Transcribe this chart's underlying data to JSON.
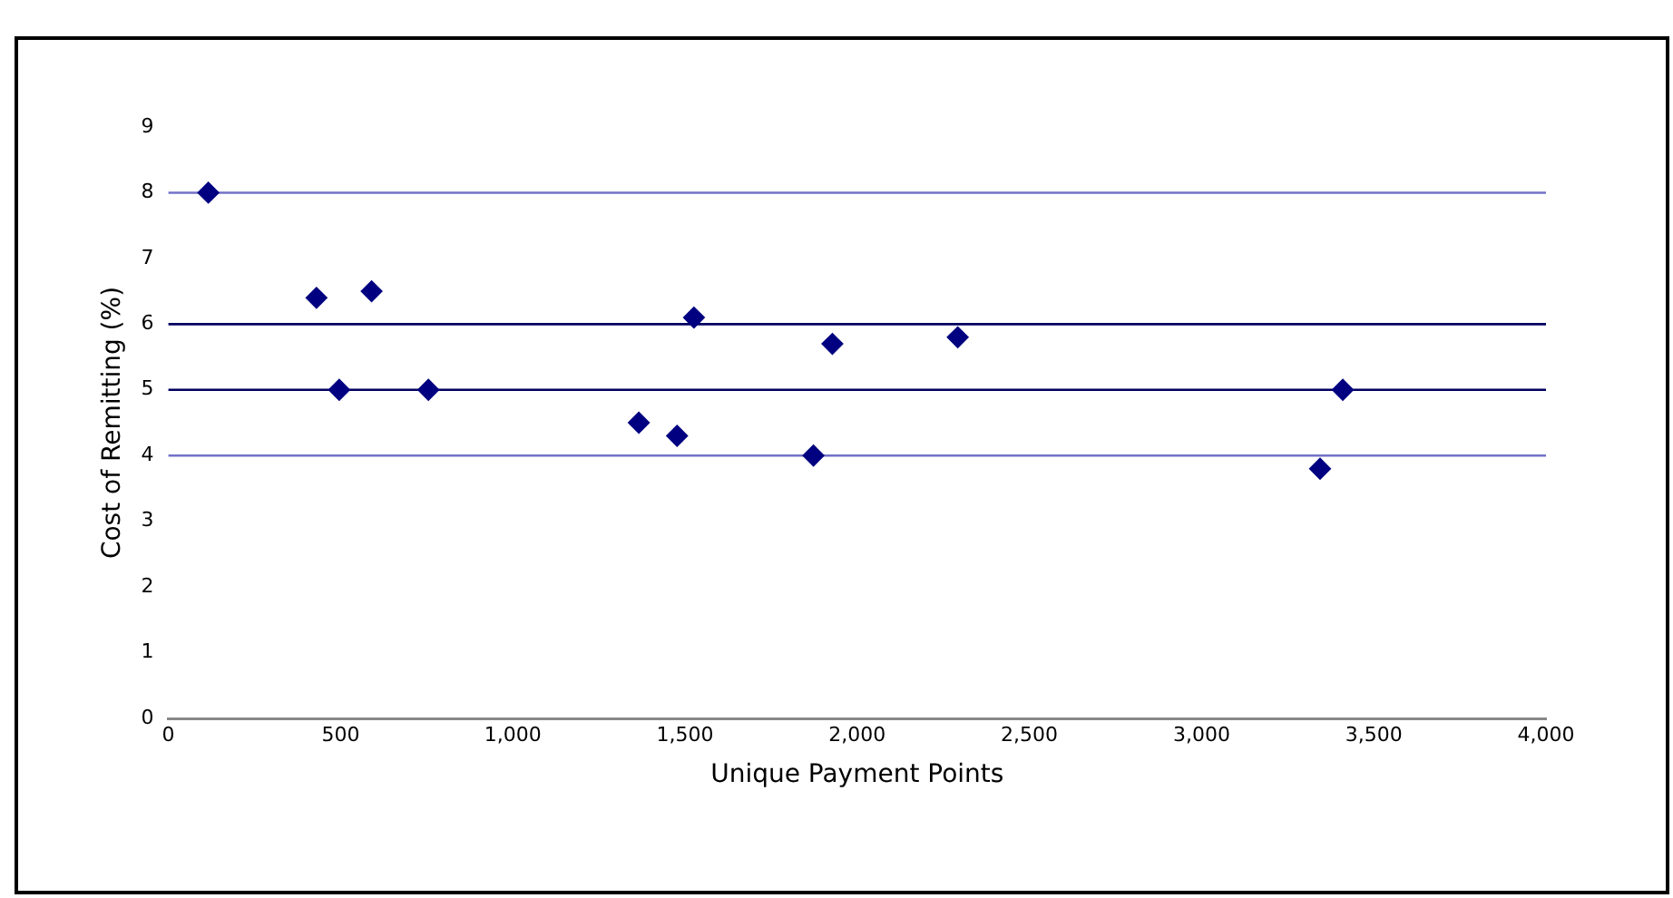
{
  "chart_data": {
    "type": "scatter",
    "xlabel": "Unique Payment Points",
    "ylabel": "Cost of Remitting (%)",
    "x": [
      116,
      430,
      496,
      590,
      755,
      1366,
      1477,
      1526,
      1873,
      1928,
      2292,
      3344,
      3410
    ],
    "series": [
      {
        "color": "#000080",
        "values": [
          8.0,
          6.4,
          5.0,
          6.5,
          5.0,
          4.5,
          4.3,
          6.1,
          4.0,
          5.7,
          5.8,
          3.8,
          5.0
        ]
      }
    ],
    "xlim": [
      0,
      4000
    ],
    "xticks": [
      {
        "value": 0,
        "label": "0"
      },
      {
        "value": 500,
        "label": "500"
      },
      {
        "value": 1000,
        "label": "1,000"
      },
      {
        "value": 1500,
        "label": "1,500"
      },
      {
        "value": 2000,
        "label": "2,000"
      },
      {
        "value": 2500,
        "label": "2,500"
      },
      {
        "value": 3000,
        "label": "3,000"
      },
      {
        "value": 3500,
        "label": "3,500"
      },
      {
        "value": 4000,
        "label": "4,000"
      }
    ],
    "ylim": [
      0,
      9
    ],
    "yticks": [
      0,
      1,
      2,
      3,
      4,
      5,
      6,
      7,
      8,
      9
    ],
    "ref_lines": [
      {
        "axis": "y",
        "value": 4,
        "color": "#7272c8"
      },
      {
        "axis": "y",
        "value": 5,
        "color": "#000060"
      },
      {
        "axis": "y",
        "value": 6,
        "color": "#000060"
      },
      {
        "axis": "y",
        "value": 8,
        "color": "#7272c8"
      }
    ],
    "grid": false,
    "legend": false,
    "marker": "diamond"
  }
}
